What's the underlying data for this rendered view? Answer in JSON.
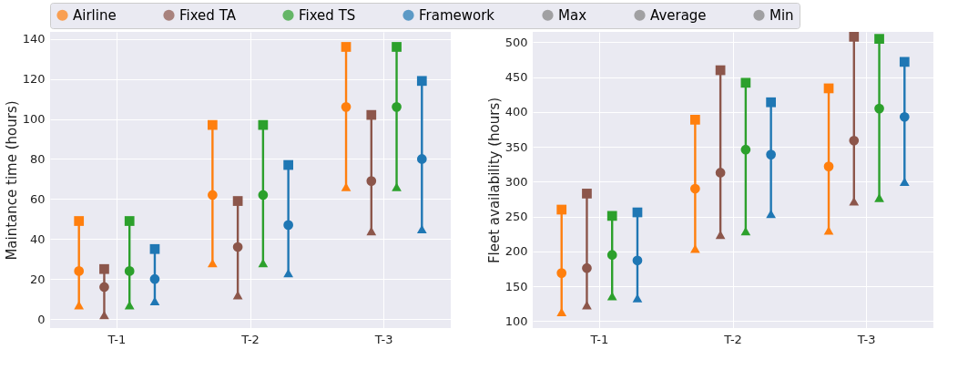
{
  "chart_data": [
    {
      "type": "scatter",
      "ylabel": "Maintance time (hours)",
      "categories": [
        "T-1",
        "T-2",
        "T-3"
      ],
      "ylim": [
        -4.5,
        143.5
      ],
      "yticks": [
        0,
        20,
        40,
        60,
        80,
        100,
        120,
        140
      ],
      "grid": true,
      "legend": "top",
      "series": [
        {
          "name": "Airline",
          "color": "#ff7f0e",
          "marker": "circle",
          "values": [
            24,
            62,
            106
          ]
        },
        {
          "color": "#ff7f0e",
          "marker": "square",
          "values": [
            49,
            97,
            136
          ]
        },
        {
          "color": "#ff7f0e",
          "marker": "triangle",
          "values": [
            7,
            28,
            66
          ]
        },
        {
          "name": "Fixed TA",
          "color": "#8c564b",
          "marker": "circle",
          "values": [
            16,
            36,
            69
          ]
        },
        {
          "color": "#8c564b",
          "marker": "square",
          "values": [
            25,
            59,
            102
          ]
        },
        {
          "color": "#8c564b",
          "marker": "triangle",
          "values": [
            2,
            12,
            44
          ]
        },
        {
          "name": "Fixed TS",
          "color": "#2ca02c",
          "marker": "circle",
          "values": [
            24,
            62,
            106
          ]
        },
        {
          "color": "#2ca02c",
          "marker": "square",
          "values": [
            49,
            97,
            136
          ]
        },
        {
          "color": "#2ca02c",
          "marker": "triangle",
          "values": [
            7,
            28,
            66
          ]
        },
        {
          "name": "Framework",
          "color": "#1f77b4",
          "marker": "circle",
          "values": [
            20,
            47,
            80
          ]
        },
        {
          "color": "#1f77b4",
          "marker": "square",
          "values": [
            35,
            77,
            119
          ]
        },
        {
          "color": "#1f77b4",
          "marker": "triangle",
          "values": [
            9,
            23,
            45
          ]
        },
        {
          "name": "Max",
          "color": "#808080",
          "marker": "square",
          "values": [
            null,
            null,
            null
          ]
        },
        {
          "name": "Average",
          "color": "#808080",
          "marker": "circle",
          "values": [
            null,
            null,
            null
          ]
        },
        {
          "name": "Min",
          "color": "#808080",
          "marker": "triangle",
          "values": [
            null,
            null,
            null
          ]
        }
      ]
    },
    {
      "type": "scatter",
      "ylabel": "Fleet availability (hours)",
      "categories": [
        "T-1",
        "T-2",
        "T-3"
      ],
      "ylim": [
        90,
        515
      ],
      "yticks": [
        100,
        150,
        200,
        250,
        300,
        350,
        400,
        450,
        500
      ],
      "grid": true,
      "series": [
        {
          "name": "Airline",
          "color": "#ff7f0e",
          "marker": "circle",
          "values": [
            169,
            290,
            322
          ]
        },
        {
          "color": "#ff7f0e",
          "marker": "square",
          "values": [
            260,
            389,
            434
          ]
        },
        {
          "color": "#ff7f0e",
          "marker": "triangle",
          "values": [
            113,
            204,
            230
          ]
        },
        {
          "name": "Fixed TA",
          "color": "#8c564b",
          "marker": "circle",
          "values": [
            176,
            313,
            359
          ]
        },
        {
          "color": "#8c564b",
          "marker": "square",
          "values": [
            283,
            460,
            508
          ]
        },
        {
          "color": "#8c564b",
          "marker": "triangle",
          "values": [
            123,
            224,
            272
          ]
        },
        {
          "name": "Fixed TS",
          "color": "#2ca02c",
          "marker": "circle",
          "values": [
            195,
            346,
            405
          ]
        },
        {
          "color": "#2ca02c",
          "marker": "square",
          "values": [
            251,
            442,
            505
          ]
        },
        {
          "color": "#2ca02c",
          "marker": "triangle",
          "values": [
            136,
            229,
            277
          ]
        },
        {
          "name": "Framework",
          "color": "#1f77b4",
          "marker": "circle",
          "values": [
            187,
            339,
            393
          ]
        },
        {
          "color": "#1f77b4",
          "marker": "square",
          "values": [
            256,
            414,
            472
          ]
        },
        {
          "color": "#1f77b4",
          "marker": "triangle",
          "values": [
            133,
            254,
            300
          ]
        }
      ]
    }
  ]
}
